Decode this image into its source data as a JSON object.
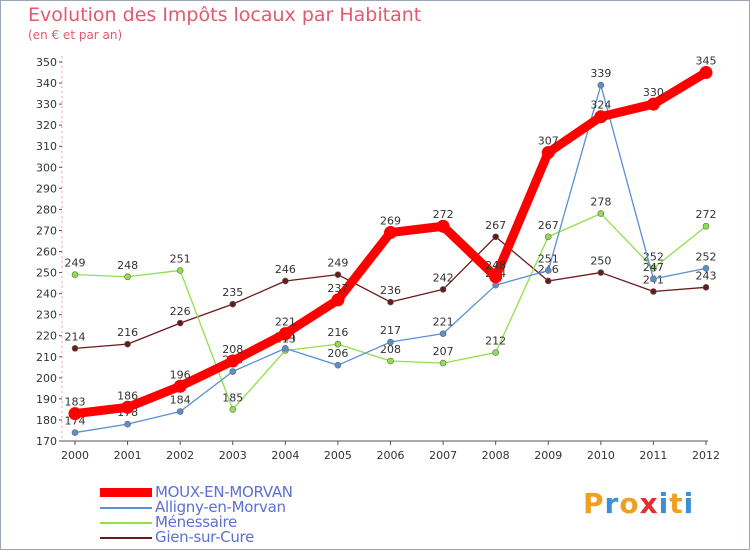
{
  "chart_data": {
    "type": "line",
    "title": "Evolution des Impôts locaux par Habitant",
    "subtitle": "(en € et par an)",
    "xlabel": "",
    "ylabel": "",
    "categories": [
      "2000",
      "2001",
      "2002",
      "2003",
      "2004",
      "2005",
      "2006",
      "2007",
      "2008",
      "2009",
      "2010",
      "2011",
      "2012"
    ],
    "ylim": [
      170,
      350
    ],
    "yticks": [
      170,
      180,
      190,
      200,
      210,
      220,
      230,
      240,
      250,
      260,
      270,
      280,
      290,
      300,
      310,
      320,
      330,
      340,
      350
    ],
    "grid": false,
    "legend_position": "bottom-left",
    "series": [
      {
        "name": "Gien-sur-Cure",
        "color": "#6b1a1a",
        "values": [
          214,
          216,
          226,
          235,
          246,
          249,
          236,
          242,
          267,
          246,
          250,
          241,
          243
        ],
        "labels": [
          "214",
          "216",
          "226",
          "235",
          "246",
          "249",
          "236",
          "242",
          "267",
          "246",
          "250",
          "241",
          "243"
        ]
      },
      {
        "name": "Ménessaire",
        "color": "#8fe04a",
        "values": [
          249,
          248,
          251,
          185,
          213,
          216,
          208,
          207,
          212,
          267,
          278,
          252,
          272
        ],
        "labels": [
          "249",
          "248",
          "251",
          "185",
          "213",
          "216",
          "208",
          "207",
          "212",
          "267",
          "278",
          "252",
          "272"
        ]
      },
      {
        "name": "Alligny-en-Morvan",
        "color": "#5b8fd0",
        "values": [
          174,
          178,
          184,
          203,
          214,
          206,
          217,
          221,
          244,
          251,
          339,
          247,
          252
        ],
        "labels": [
          "174",
          "178",
          "184",
          "203",
          "214",
          "206",
          "217",
          "221",
          "244",
          "251",
          "339",
          "247",
          "252"
        ]
      },
      {
        "name": "MOUX-EN-MORVAN",
        "color": "#ff0000",
        "values": [
          183,
          186,
          196,
          208,
          221,
          237,
          269,
          272,
          248,
          307,
          324,
          330,
          345
        ],
        "labels": [
          "183",
          "186",
          "196",
          "208",
          "221",
          "237",
          "269",
          "272",
          "248",
          "307",
          "324",
          "330",
          "345"
        ]
      }
    ]
  },
  "legend": {
    "items": [
      {
        "label": "MOUX-EN-MORVAN",
        "color": "#ff0000"
      },
      {
        "label": "Alligny-en-Morvan",
        "color": "#5b8fd0"
      },
      {
        "label": "Ménessaire",
        "color": "#8fe04a"
      },
      {
        "label": "Gien-sur-Cure",
        "color": "#6b1a1a"
      }
    ]
  },
  "logo": {
    "text": "Proxiti",
    "colors": [
      "#f0a020",
      "#3a8fd8",
      "#f0a020",
      "#e03030",
      "#3a8fd8",
      "#f0a020",
      "#3a8fd8"
    ]
  }
}
